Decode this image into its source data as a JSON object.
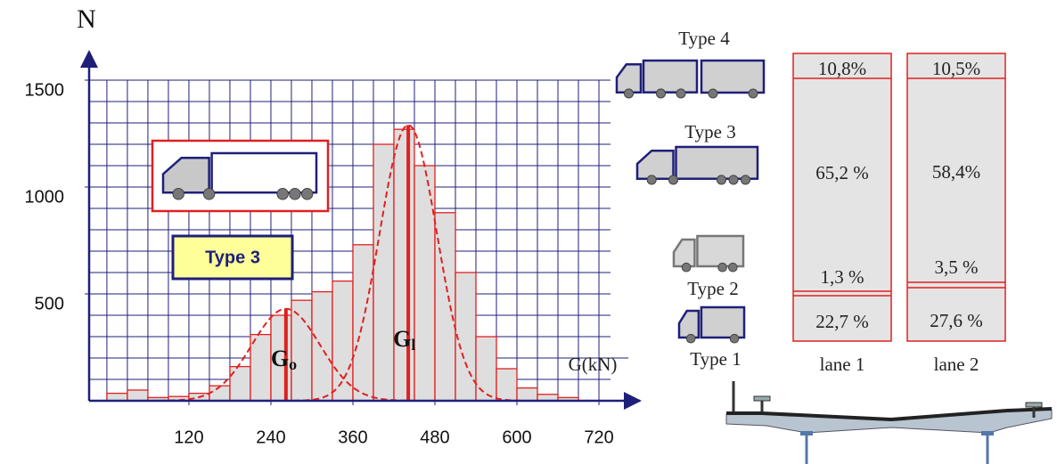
{
  "chart_data": {
    "type": "histogram",
    "y_label": "N",
    "x_label": "G(kN)",
    "bins": [
      0,
      30,
      60,
      90,
      120,
      150,
      180,
      210,
      240,
      270,
      300,
      330,
      360,
      390,
      420,
      450,
      480,
      510,
      540,
      570,
      600,
      630,
      660,
      690
    ],
    "values": [
      35,
      50,
      15,
      20,
      35,
      70,
      160,
      310,
      400,
      470,
      510,
      560,
      730,
      1200,
      1270,
      1100,
      880,
      600,
      300,
      150,
      60,
      30,
      15
    ],
    "color": "#dedede",
    "edge_color": "#e02020",
    "xlim": [
      -26,
      763
    ],
    "ylim": [
      0,
      1600
    ],
    "xticks": [
      120,
      240,
      360,
      480,
      600,
      720
    ],
    "yticks": [
      500,
      1000,
      1500
    ],
    "grid": true,
    "grid_x_step": 30,
    "grid_y_step": 100,
    "curves": [
      {
        "label": "G",
        "subscript": "o",
        "mean": 262,
        "peak": 430,
        "sd": 50
      },
      {
        "label": "G",
        "subscript": "l",
        "mean": 441,
        "peak": 1290,
        "sd": 42
      }
    ],
    "inset_label": "Type 3"
  },
  "diagram": {
    "vehicle_types": [
      "Type 4",
      "Type 3",
      "Type 2",
      "Type 1"
    ],
    "lanes": [
      {
        "label": "lane 1",
        "shares": [
          "10,8%",
          "65,2 %",
          "1,3 %",
          "22,7 %"
        ]
      },
      {
        "label": "lane 2",
        "shares": [
          "10,5%",
          "58,4%",
          "3,5 %",
          "27,6 %"
        ]
      }
    ]
  }
}
